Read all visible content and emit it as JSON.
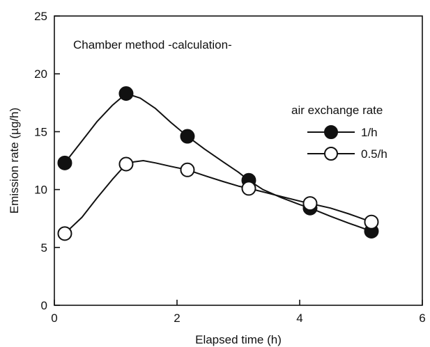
{
  "chart_data": {
    "type": "line",
    "annotation": "Chamber method -calculation-",
    "xlabel": "Elapsed time (h)",
    "ylabel": "Emission rate (µg/h)",
    "xlim": [
      0,
      6
    ],
    "ylim": [
      0,
      25
    ],
    "x_ticks": [
      "0",
      "2",
      "4",
      "6"
    ],
    "y_ticks": [
      "0",
      "5",
      "10",
      "15",
      "20",
      "25"
    ],
    "legend_title": "air exchange rate",
    "legend_position": "right",
    "grid": false,
    "series": [
      {
        "name": "1/h",
        "marker": "filled-circle",
        "x": [
          0.17,
          1.17,
          2.17,
          3.17,
          4.17,
          5.17
        ],
        "y": [
          12.3,
          18.3,
          14.6,
          10.8,
          8.4,
          6.4
        ],
        "curve_x": [
          0.17,
          0.45,
          0.7,
          0.95,
          1.17,
          1.4,
          1.65,
          1.9,
          2.17,
          2.45,
          2.75,
          3.0,
          3.17,
          3.4,
          3.7,
          4.0,
          4.17,
          4.5,
          4.8,
          5.17
        ],
        "curve_y": [
          12.3,
          14.2,
          15.9,
          17.3,
          18.3,
          17.9,
          17.0,
          15.8,
          14.6,
          13.5,
          12.4,
          11.5,
          10.8,
          10.0,
          9.3,
          8.7,
          8.4,
          7.7,
          7.1,
          6.4
        ]
      },
      {
        "name": "0.5/h",
        "marker": "open-circle",
        "x": [
          0.17,
          1.17,
          2.17,
          3.17,
          4.17,
          5.17
        ],
        "y": [
          6.2,
          12.2,
          11.7,
          10.1,
          8.8,
          7.2
        ],
        "curve_x": [
          0.17,
          0.45,
          0.7,
          0.95,
          1.17,
          1.3,
          1.45,
          1.65,
          1.9,
          2.17,
          2.45,
          2.75,
          3.0,
          3.17,
          3.4,
          3.7,
          4.0,
          4.17,
          4.5,
          4.8,
          5.17
        ],
        "curve_y": [
          6.2,
          7.6,
          9.3,
          10.9,
          12.2,
          12.4,
          12.5,
          12.3,
          12.0,
          11.7,
          11.2,
          10.7,
          10.3,
          10.1,
          9.8,
          9.4,
          9.0,
          8.8,
          8.4,
          7.9,
          7.2
        ]
      }
    ]
  }
}
